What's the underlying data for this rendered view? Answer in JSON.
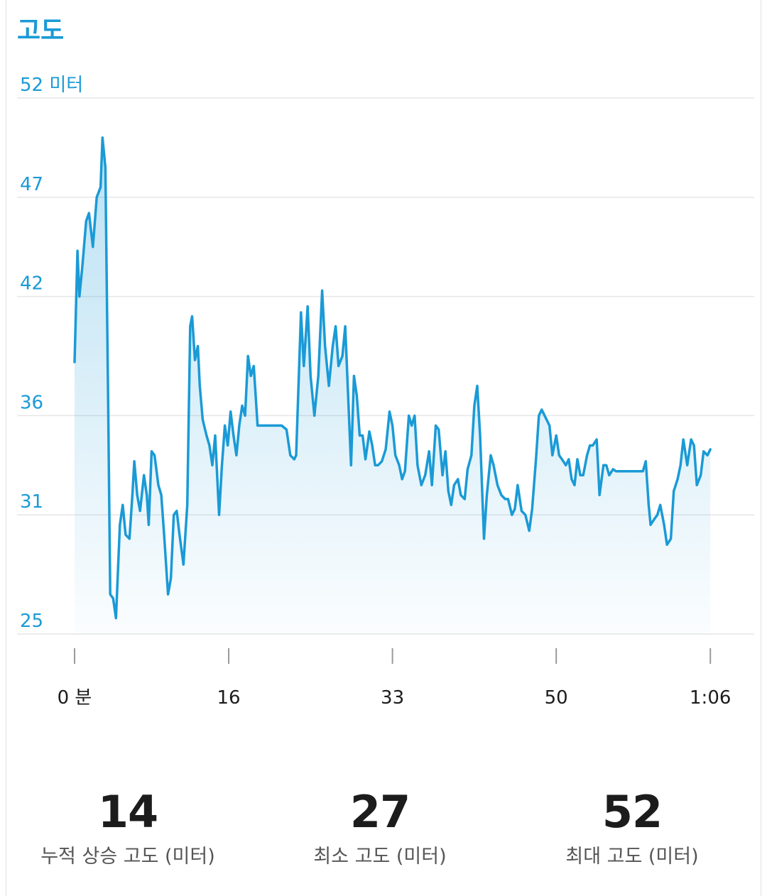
{
  "header": {
    "title": "고도"
  },
  "colors": {
    "accent": "#1a9ad6",
    "grid": "#e6e6e6",
    "text": "#1c1c1c",
    "muted": "#555555"
  },
  "chart_data": {
    "type": "area",
    "title": "고도",
    "ylabel": "미터",
    "ylim": [
      25,
      52
    ],
    "y_ticks": [
      25,
      31,
      36,
      42,
      47,
      52
    ],
    "y_tick_labels": [
      "25",
      "31",
      "36",
      "42",
      "47",
      "52 미터"
    ],
    "xlim": [
      0,
      66.5
    ],
    "x_ticks": [
      0,
      16,
      33,
      50,
      66
    ],
    "x_tick_labels": [
      "0 분",
      "16",
      "33",
      "50",
      "1:06"
    ],
    "grid": true,
    "series": [
      {
        "values": [
          [
            0,
            38.7
          ],
          [
            0.3,
            44.3
          ],
          [
            0.5,
            42.0
          ],
          [
            0.8,
            43.5
          ],
          [
            1.2,
            45.8
          ],
          [
            1.5,
            46.2
          ],
          [
            1.9,
            44.5
          ],
          [
            2.3,
            47.0
          ],
          [
            2.7,
            47.5
          ],
          [
            2.9,
            50.0
          ],
          [
            3.2,
            48.5
          ],
          [
            3.5,
            36.0
          ],
          [
            3.7,
            27.0
          ],
          [
            4.0,
            26.8
          ],
          [
            4.3,
            25.8
          ],
          [
            4.7,
            30.5
          ],
          [
            5.0,
            31.5
          ],
          [
            5.3,
            30.0
          ],
          [
            5.7,
            29.8
          ],
          [
            6.0,
            32.0
          ],
          [
            6.2,
            33.7
          ],
          [
            6.5,
            32.0
          ],
          [
            6.8,
            31.2
          ],
          [
            7.2,
            33.0
          ],
          [
            7.5,
            32.0
          ],
          [
            7.7,
            30.5
          ],
          [
            8.0,
            34.2
          ],
          [
            8.3,
            34.0
          ],
          [
            8.7,
            32.5
          ],
          [
            9.0,
            32.0
          ],
          [
            9.3,
            30.0
          ],
          [
            9.7,
            27.0
          ],
          [
            10.0,
            27.8
          ],
          [
            10.3,
            31.0
          ],
          [
            10.6,
            31.2
          ],
          [
            10.9,
            30.0
          ],
          [
            11.3,
            28.5
          ],
          [
            11.7,
            31.5
          ],
          [
            12.0,
            40.5
          ],
          [
            12.2,
            41.0
          ],
          [
            12.5,
            38.8
          ],
          [
            12.8,
            39.5
          ],
          [
            13.0,
            37.5
          ],
          [
            13.3,
            35.8
          ],
          [
            13.7,
            35.0
          ],
          [
            14.0,
            34.5
          ],
          [
            14.3,
            33.5
          ],
          [
            14.6,
            35.0
          ],
          [
            15.0,
            31.0
          ],
          [
            15.3,
            33.5
          ],
          [
            15.6,
            35.5
          ],
          [
            15.9,
            34.5
          ],
          [
            16.2,
            36.2
          ],
          [
            16.5,
            35.0
          ],
          [
            16.8,
            34.0
          ],
          [
            17.1,
            35.5
          ],
          [
            17.4,
            36.5
          ],
          [
            17.7,
            36.0
          ],
          [
            18.0,
            39.0
          ],
          [
            18.3,
            38.0
          ],
          [
            18.6,
            38.5
          ],
          [
            19.0,
            35.5
          ],
          [
            19.5,
            35.5
          ],
          [
            21.5,
            35.5
          ],
          [
            22.0,
            35.3
          ],
          [
            22.4,
            34.0
          ],
          [
            22.8,
            33.8
          ],
          [
            23.0,
            34.0
          ],
          [
            23.5,
            41.2
          ],
          [
            23.8,
            38.5
          ],
          [
            24.2,
            41.5
          ],
          [
            24.5,
            38.0
          ],
          [
            24.9,
            36.0
          ],
          [
            25.3,
            38.0
          ],
          [
            25.7,
            42.3
          ],
          [
            26.0,
            39.5
          ],
          [
            26.4,
            37.5
          ],
          [
            26.8,
            39.5
          ],
          [
            27.1,
            40.5
          ],
          [
            27.4,
            38.5
          ],
          [
            27.8,
            39.0
          ],
          [
            28.1,
            40.5
          ],
          [
            28.4,
            37.0
          ],
          [
            28.7,
            33.5
          ],
          [
            29.0,
            38.0
          ],
          [
            29.3,
            37.0
          ],
          [
            29.6,
            35.0
          ],
          [
            29.9,
            35.0
          ],
          [
            30.2,
            33.8
          ],
          [
            30.6,
            35.2
          ],
          [
            30.9,
            34.5
          ],
          [
            31.2,
            33.5
          ],
          [
            31.5,
            33.5
          ],
          [
            31.9,
            33.7
          ],
          [
            32.3,
            34.3
          ],
          [
            32.7,
            36.2
          ],
          [
            33.0,
            35.5
          ],
          [
            33.3,
            34.0
          ],
          [
            33.7,
            33.5
          ],
          [
            34.0,
            32.8
          ],
          [
            34.3,
            33.2
          ],
          [
            34.7,
            36.0
          ],
          [
            35.0,
            35.5
          ],
          [
            35.3,
            36.0
          ],
          [
            35.6,
            33.5
          ],
          [
            36.0,
            32.5
          ],
          [
            36.4,
            33.0
          ],
          [
            36.8,
            34.2
          ],
          [
            37.1,
            32.5
          ],
          [
            37.5,
            35.5
          ],
          [
            37.8,
            35.3
          ],
          [
            38.2,
            33.0
          ],
          [
            38.5,
            34.2
          ],
          [
            38.8,
            32.2
          ],
          [
            39.1,
            31.5
          ],
          [
            39.4,
            32.5
          ],
          [
            39.8,
            32.8
          ],
          [
            40.1,
            32.0
          ],
          [
            40.5,
            31.8
          ],
          [
            40.8,
            33.3
          ],
          [
            41.2,
            34.0
          ],
          [
            41.5,
            36.5
          ],
          [
            41.8,
            37.5
          ],
          [
            42.1,
            35.0
          ],
          [
            42.5,
            29.8
          ],
          [
            42.8,
            32.0
          ],
          [
            43.2,
            34.0
          ],
          [
            43.5,
            33.5
          ],
          [
            43.9,
            32.5
          ],
          [
            44.3,
            32.0
          ],
          [
            44.7,
            31.8
          ],
          [
            45.0,
            31.8
          ],
          [
            45.4,
            31.0
          ],
          [
            45.7,
            31.3
          ],
          [
            46.0,
            32.5
          ],
          [
            46.4,
            31.2
          ],
          [
            46.8,
            31.0
          ],
          [
            47.2,
            30.2
          ],
          [
            47.5,
            31.3
          ],
          [
            47.9,
            33.8
          ],
          [
            48.2,
            36.0
          ],
          [
            48.5,
            36.3
          ],
          [
            48.8,
            36.0
          ],
          [
            49.3,
            35.5
          ],
          [
            49.6,
            34.0
          ],
          [
            50.0,
            35.0
          ],
          [
            50.3,
            34.0
          ],
          [
            50.6,
            33.8
          ],
          [
            51.0,
            33.5
          ],
          [
            51.3,
            33.8
          ],
          [
            51.6,
            32.8
          ],
          [
            51.9,
            32.5
          ],
          [
            52.2,
            33.8
          ],
          [
            52.5,
            33.0
          ],
          [
            52.8,
            33.0
          ],
          [
            53.2,
            34.0
          ],
          [
            53.5,
            34.5
          ],
          [
            53.8,
            34.5
          ],
          [
            54.2,
            34.8
          ],
          [
            54.5,
            32.0
          ],
          [
            54.9,
            33.5
          ],
          [
            55.2,
            33.5
          ],
          [
            55.5,
            33.0
          ],
          [
            55.9,
            33.3
          ],
          [
            56.2,
            33.2
          ],
          [
            59.0,
            33.2
          ],
          [
            59.3,
            33.7
          ],
          [
            59.6,
            31.5
          ],
          [
            59.8,
            30.5
          ],
          [
            60.2,
            30.8
          ],
          [
            60.5,
            31.0
          ],
          [
            60.8,
            31.5
          ],
          [
            61.2,
            30.5
          ],
          [
            61.5,
            29.5
          ],
          [
            61.9,
            29.8
          ],
          [
            62.2,
            32.2
          ],
          [
            62.6,
            32.8
          ],
          [
            62.9,
            33.5
          ],
          [
            63.2,
            34.8
          ],
          [
            63.6,
            33.5
          ],
          [
            64.0,
            34.8
          ],
          [
            64.3,
            34.5
          ],
          [
            64.6,
            32.5
          ],
          [
            65.0,
            33.0
          ],
          [
            65.3,
            34.2
          ],
          [
            65.7,
            34.0
          ],
          [
            66.0,
            34.3
          ]
        ]
      }
    ]
  },
  "stats": [
    {
      "value": "14",
      "label": "누적 상승 고도 (미터)"
    },
    {
      "value": "27",
      "label": "최소 고도 (미터)"
    },
    {
      "value": "52",
      "label": "최대 고도 (미터)"
    }
  ]
}
